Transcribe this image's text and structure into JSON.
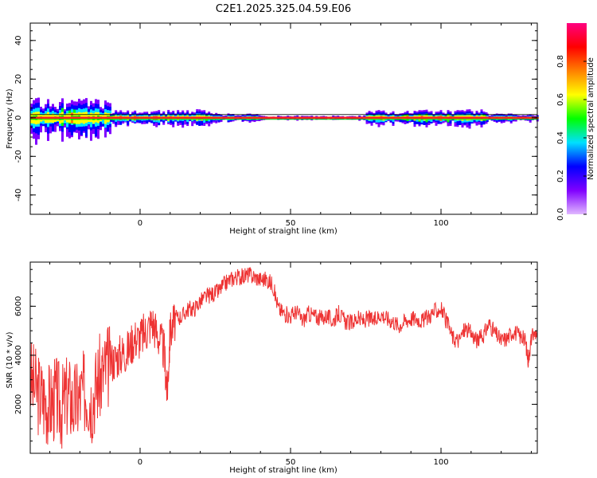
{
  "title": "C2E1.2025.325.04.59.E06",
  "chart_data": [
    {
      "type": "heatmap",
      "name": "spectrogram",
      "xlabel": "Height of straight line (km)",
      "ylabel": "Frequency (Hz)",
      "xlim": [
        -36.5,
        132
      ],
      "ylim": [
        -50,
        49
      ],
      "xticks": [
        0,
        50,
        100
      ],
      "yticks": [
        -40,
        -20,
        0,
        20,
        40
      ],
      "colorbar": {
        "label": "Normalized spectral amplitude",
        "range": [
          0,
          1
        ],
        "ticks": [
          0.0,
          0.2,
          0.4,
          0.6,
          0.8
        ],
        "tick_labels": [
          "0.0",
          "0.2",
          "0.4",
          "0.6",
          "0.8"
        ],
        "colormap": [
          "#e0b8ff",
          "#8000ff",
          "#0000ff",
          "#00e0ff",
          "#00ff00",
          "#ffff00",
          "#ff8000",
          "#ff0000",
          "#ff0080"
        ]
      },
      "ridge_frequency": 0,
      "bands": [
        {
          "x": [
            -36.5,
            -10
          ],
          "spread": 7,
          "peak": 0.6
        },
        {
          "x": [
            -10,
            25
          ],
          "spread": 3,
          "peak": 0.9
        },
        {
          "x": [
            25,
            40
          ],
          "spread": 1.5,
          "peak": 0.95
        },
        {
          "x": [
            40,
            75
          ],
          "spread": 0.8,
          "peak": 1.0
        },
        {
          "x": [
            75,
            115
          ],
          "spread": 3,
          "peak": 0.9
        },
        {
          "x": [
            115,
            132
          ],
          "spread": 1.5,
          "peak": 0.95
        }
      ]
    },
    {
      "type": "line",
      "name": "snr",
      "xlabel": "Height of straight line (km)",
      "ylabel": "SNR (10 * v/v)",
      "xlim": [
        -36.5,
        132
      ],
      "ylim": [
        0,
        7800
      ],
      "xticks": [
        0,
        50,
        100
      ],
      "yticks": [
        2000,
        4000,
        6000
      ],
      "color": "#ee3333",
      "series": [
        {
          "x": [
            -36.5,
            -34,
            -32,
            -30,
            -28,
            -26,
            -24,
            -22,
            -20,
            -18,
            -16,
            -14,
            -12,
            -10,
            -8,
            -6,
            -4,
            -2,
            0,
            2,
            4,
            6,
            8,
            9,
            10,
            12,
            14,
            16,
            18,
            20,
            22,
            24,
            26,
            28,
            30,
            32,
            34,
            36,
            38,
            40,
            42,
            44,
            46,
            48,
            50,
            52,
            54,
            56,
            58,
            60,
            62,
            64,
            66,
            68,
            70,
            72,
            74,
            76,
            78,
            80,
            82,
            84,
            86,
            88,
            90,
            92,
            94,
            96,
            98,
            100,
            102,
            104,
            106,
            108,
            110,
            112,
            114,
            116,
            118,
            120,
            122,
            124,
            126,
            128,
            129,
            130,
            132
          ],
          "y": [
            3000,
            2500,
            2200,
            2000,
            2300,
            1900,
            2400,
            2000,
            2300,
            2600,
            2200,
            3000,
            3300,
            3700,
            3900,
            4100,
            4200,
            4700,
            4700,
            5000,
            5400,
            4800,
            4200,
            2400,
            5000,
            5500,
            5600,
            5900,
            5900,
            6200,
            6400,
            6500,
            6600,
            6900,
            7100,
            7200,
            7200,
            7300,
            7200,
            7100,
            7100,
            6900,
            5900,
            5700,
            5600,
            5800,
            5400,
            5700,
            5600,
            5500,
            5600,
            5400,
            5700,
            5400,
            5300,
            5500,
            5400,
            5500,
            5400,
            5700,
            5500,
            5400,
            5200,
            5400,
            5500,
            5500,
            5400,
            5600,
            5800,
            5900,
            5300,
            4700,
            4600,
            5100,
            4900,
            4600,
            4800,
            5300,
            4900,
            4600,
            4700,
            5000,
            4800,
            4600,
            3800,
            4700,
            5000
          ]
        }
      ]
    }
  ]
}
